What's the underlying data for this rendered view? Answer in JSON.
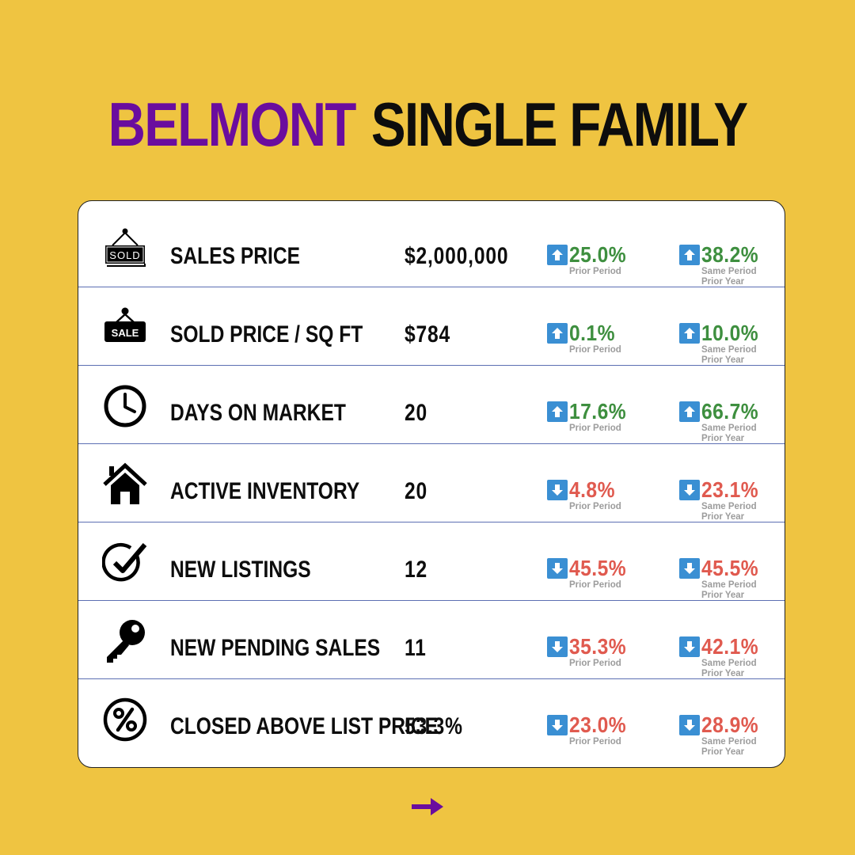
{
  "title": {
    "city": "BELMONT",
    "type": "SINGLE FAMILY"
  },
  "labels": {
    "prior": "Prior Period",
    "year_line1": "Same Period",
    "year_line2": "Prior Year"
  },
  "colors": {
    "background": "#EFC441",
    "city": "#6A0D9E",
    "up": "#3e8f3f",
    "down": "#e05a4f",
    "arrow_box": "#3a8fd3",
    "next_arrow": "#6A0D9E"
  },
  "rows": [
    {
      "icon": "sold-sign-icon",
      "label": "SALES PRICE",
      "value": "$2,000,000",
      "prior": {
        "dir": "up",
        "pct": "25.0%"
      },
      "year": {
        "dir": "up",
        "pct": "38.2%"
      }
    },
    {
      "icon": "sale-tag-icon",
      "label": "SOLD PRICE / SQ FT",
      "value": "$784",
      "prior": {
        "dir": "up",
        "pct": "0.1%"
      },
      "year": {
        "dir": "up",
        "pct": "10.0%"
      }
    },
    {
      "icon": "clock-icon",
      "label": "DAYS ON MARKET",
      "value": "20",
      "prior": {
        "dir": "up",
        "pct": "17.6%"
      },
      "year": {
        "dir": "up",
        "pct": "66.7%"
      }
    },
    {
      "icon": "house-icon",
      "label": "ACTIVE INVENTORY",
      "value": "20",
      "prior": {
        "dir": "down",
        "pct": "4.8%"
      },
      "year": {
        "dir": "down",
        "pct": "23.1%"
      }
    },
    {
      "icon": "checkmark-circle-icon",
      "label": "NEW LISTINGS",
      "value": "12",
      "prior": {
        "dir": "down",
        "pct": "45.5%"
      },
      "year": {
        "dir": "down",
        "pct": "45.5%"
      }
    },
    {
      "icon": "key-icon",
      "label": "NEW PENDING SALES",
      "value": "11",
      "prior": {
        "dir": "down",
        "pct": "35.3%"
      },
      "year": {
        "dir": "down",
        "pct": "42.1%"
      }
    },
    {
      "icon": "percent-circle-icon",
      "label": "CLOSED ABOVE LIST PRICE",
      "value": "53.3%",
      "prior": {
        "dir": "down",
        "pct": "23.0%"
      },
      "year": {
        "dir": "down",
        "pct": "28.9%"
      }
    }
  ],
  "next": {
    "icon": "arrow-right-icon"
  }
}
